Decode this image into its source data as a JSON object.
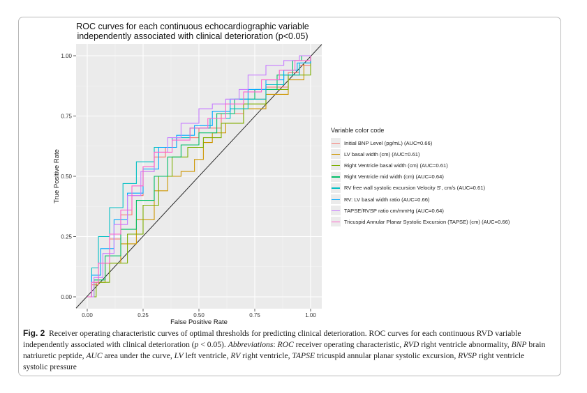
{
  "figure": {
    "caption_label": "Fig. 2",
    "caption_text": "Receiver operating characteristic curves of optimal thresholds for predicting clinical deterioration. ROC curves for each continuous RVD variable independently associated with clinical deterioration (",
    "caption_p": "p",
    "caption_text2": " < 0.05). ",
    "abbr_intro": "Abbreviations",
    "abbr_list": [
      {
        "term": "ROC",
        "def": " receiver operating characteristic, "
      },
      {
        "term": "RVD",
        "def": " right ventricle abnormality, "
      },
      {
        "term": "BNP",
        "def": " brain natriuretic peptide, "
      },
      {
        "term": "AUC",
        "def": " area under the curve, "
      },
      {
        "term": "LV",
        "def": " left ventricle, "
      },
      {
        "term": "RV",
        "def": " right ventricle, "
      },
      {
        "term": "TAPSE",
        "def": " tricuspid annular planar systolic excursion, "
      },
      {
        "term": "RVSP",
        "def": " right ventricle systolic pressure"
      }
    ]
  },
  "chart_data": {
    "type": "line",
    "title_line1": "ROC curves for each continuous echocardiographic variable",
    "title_line2": "independently associated with clinical deterioration (p<0.05)",
    "xlabel": "False Positive Rate",
    "ylabel": "True Positive Rate",
    "xlim": [
      0,
      1
    ],
    "ylim": [
      0,
      1
    ],
    "xticks": [
      "0.00",
      "0.25",
      "0.50",
      "0.75",
      "1.00"
    ],
    "yticks": [
      "0.00",
      "0.25",
      "0.50",
      "0.75",
      "1.00"
    ],
    "grid": true,
    "reference_line": "diagonal",
    "legend_title": "Variable color code",
    "legend_position": "right",
    "series": [
      {
        "name": "Initial BNP Level (pg/mL) (AUC=0.66)",
        "color": "#F8766D",
        "x": [
          0,
          0.02,
          0.05,
          0.1,
          0.15,
          0.2,
          0.25,
          0.3,
          0.35,
          0.4,
          0.5,
          0.6,
          0.7,
          0.8,
          0.9,
          0.95,
          1.0
        ],
        "y": [
          0,
          0.05,
          0.14,
          0.24,
          0.34,
          0.42,
          0.52,
          0.58,
          0.62,
          0.66,
          0.7,
          0.76,
          0.82,
          0.87,
          0.93,
          0.96,
          1.0
        ]
      },
      {
        "name": "LV basal width (cm) (AUC=0.61)",
        "color": "#CD9600",
        "x": [
          0,
          0.03,
          0.08,
          0.15,
          0.22,
          0.3,
          0.36,
          0.42,
          0.48,
          0.52,
          0.56,
          0.62,
          0.7,
          0.8,
          0.9,
          0.97,
          1.0
        ],
        "y": [
          0,
          0.06,
          0.14,
          0.22,
          0.32,
          0.44,
          0.5,
          0.52,
          0.57,
          0.64,
          0.68,
          0.72,
          0.78,
          0.84,
          0.9,
          0.97,
          1.0
        ]
      },
      {
        "name": "Right Ventricle basal width (cm) (AUC=0.61)",
        "color": "#7CAE00",
        "x": [
          0,
          0.04,
          0.1,
          0.18,
          0.25,
          0.32,
          0.38,
          0.45,
          0.52,
          0.6,
          0.7,
          0.8,
          0.9,
          1.0
        ],
        "y": [
          0,
          0.06,
          0.14,
          0.26,
          0.38,
          0.5,
          0.58,
          0.62,
          0.66,
          0.72,
          0.8,
          0.86,
          0.92,
          1.0
        ]
      },
      {
        "name": "Right Ventricle mid width (cm) (AUC=0.64)",
        "color": "#00BE67",
        "x": [
          0,
          0.03,
          0.08,
          0.15,
          0.22,
          0.3,
          0.36,
          0.42,
          0.5,
          0.58,
          0.66,
          0.75,
          0.85,
          0.92,
          0.96,
          1.0
        ],
        "y": [
          0,
          0.07,
          0.17,
          0.28,
          0.4,
          0.5,
          0.58,
          0.63,
          0.68,
          0.76,
          0.82,
          0.86,
          0.92,
          0.98,
          1.0,
          1.0
        ]
      },
      {
        "name": "RV free wall systolic excursion Velocity S', cm/s (AUC=0.61)",
        "color": "#00BFC4",
        "x": [
          0,
          0.02,
          0.05,
          0.1,
          0.16,
          0.22,
          0.3,
          0.38,
          0.46,
          0.55,
          0.64,
          0.72,
          0.8,
          0.88,
          0.95,
          1.0
        ],
        "y": [
          0,
          0.12,
          0.25,
          0.37,
          0.47,
          0.56,
          0.62,
          0.66,
          0.7,
          0.74,
          0.78,
          0.82,
          0.88,
          0.92,
          0.97,
          1.0
        ]
      },
      {
        "name": "RV: LV basal width ratio (AUC=0.66)",
        "color": "#00A9FF",
        "x": [
          0,
          0.02,
          0.06,
          0.12,
          0.18,
          0.25,
          0.32,
          0.4,
          0.48,
          0.56,
          0.64,
          0.72,
          0.8,
          0.88,
          0.94,
          1.0
        ],
        "y": [
          0,
          0.09,
          0.2,
          0.32,
          0.43,
          0.53,
          0.62,
          0.67,
          0.71,
          0.77,
          0.82,
          0.86,
          0.9,
          0.94,
          0.97,
          1.0
        ]
      },
      {
        "name": "TAPSE/RVSP ratio cm/mmHg (AUC=0.64)",
        "color": "#C77CFF",
        "x": [
          0,
          0.03,
          0.07,
          0.12,
          0.18,
          0.24,
          0.3,
          0.36,
          0.42,
          0.5,
          0.56,
          0.62,
          0.68,
          0.72,
          0.8,
          0.88,
          0.95,
          1.0
        ],
        "y": [
          0,
          0.08,
          0.18,
          0.3,
          0.42,
          0.52,
          0.6,
          0.66,
          0.72,
          0.78,
          0.8,
          0.82,
          0.86,
          0.92,
          0.96,
          0.98,
          1.0,
          1.0
        ]
      },
      {
        "name": "Tricuspid Annular Planar Systolic Excursion (TAPSE) (cm) (AUC=0.66)",
        "color": "#FF61CC",
        "x": [
          0,
          0.02,
          0.05,
          0.1,
          0.15,
          0.2,
          0.25,
          0.3,
          0.38,
          0.46,
          0.54,
          0.62,
          0.7,
          0.78,
          0.86,
          0.93,
          1.0
        ],
        "y": [
          0,
          0.06,
          0.14,
          0.26,
          0.36,
          0.46,
          0.54,
          0.6,
          0.65,
          0.7,
          0.74,
          0.8,
          0.85,
          0.9,
          0.94,
          0.98,
          1.0
        ]
      }
    ]
  }
}
